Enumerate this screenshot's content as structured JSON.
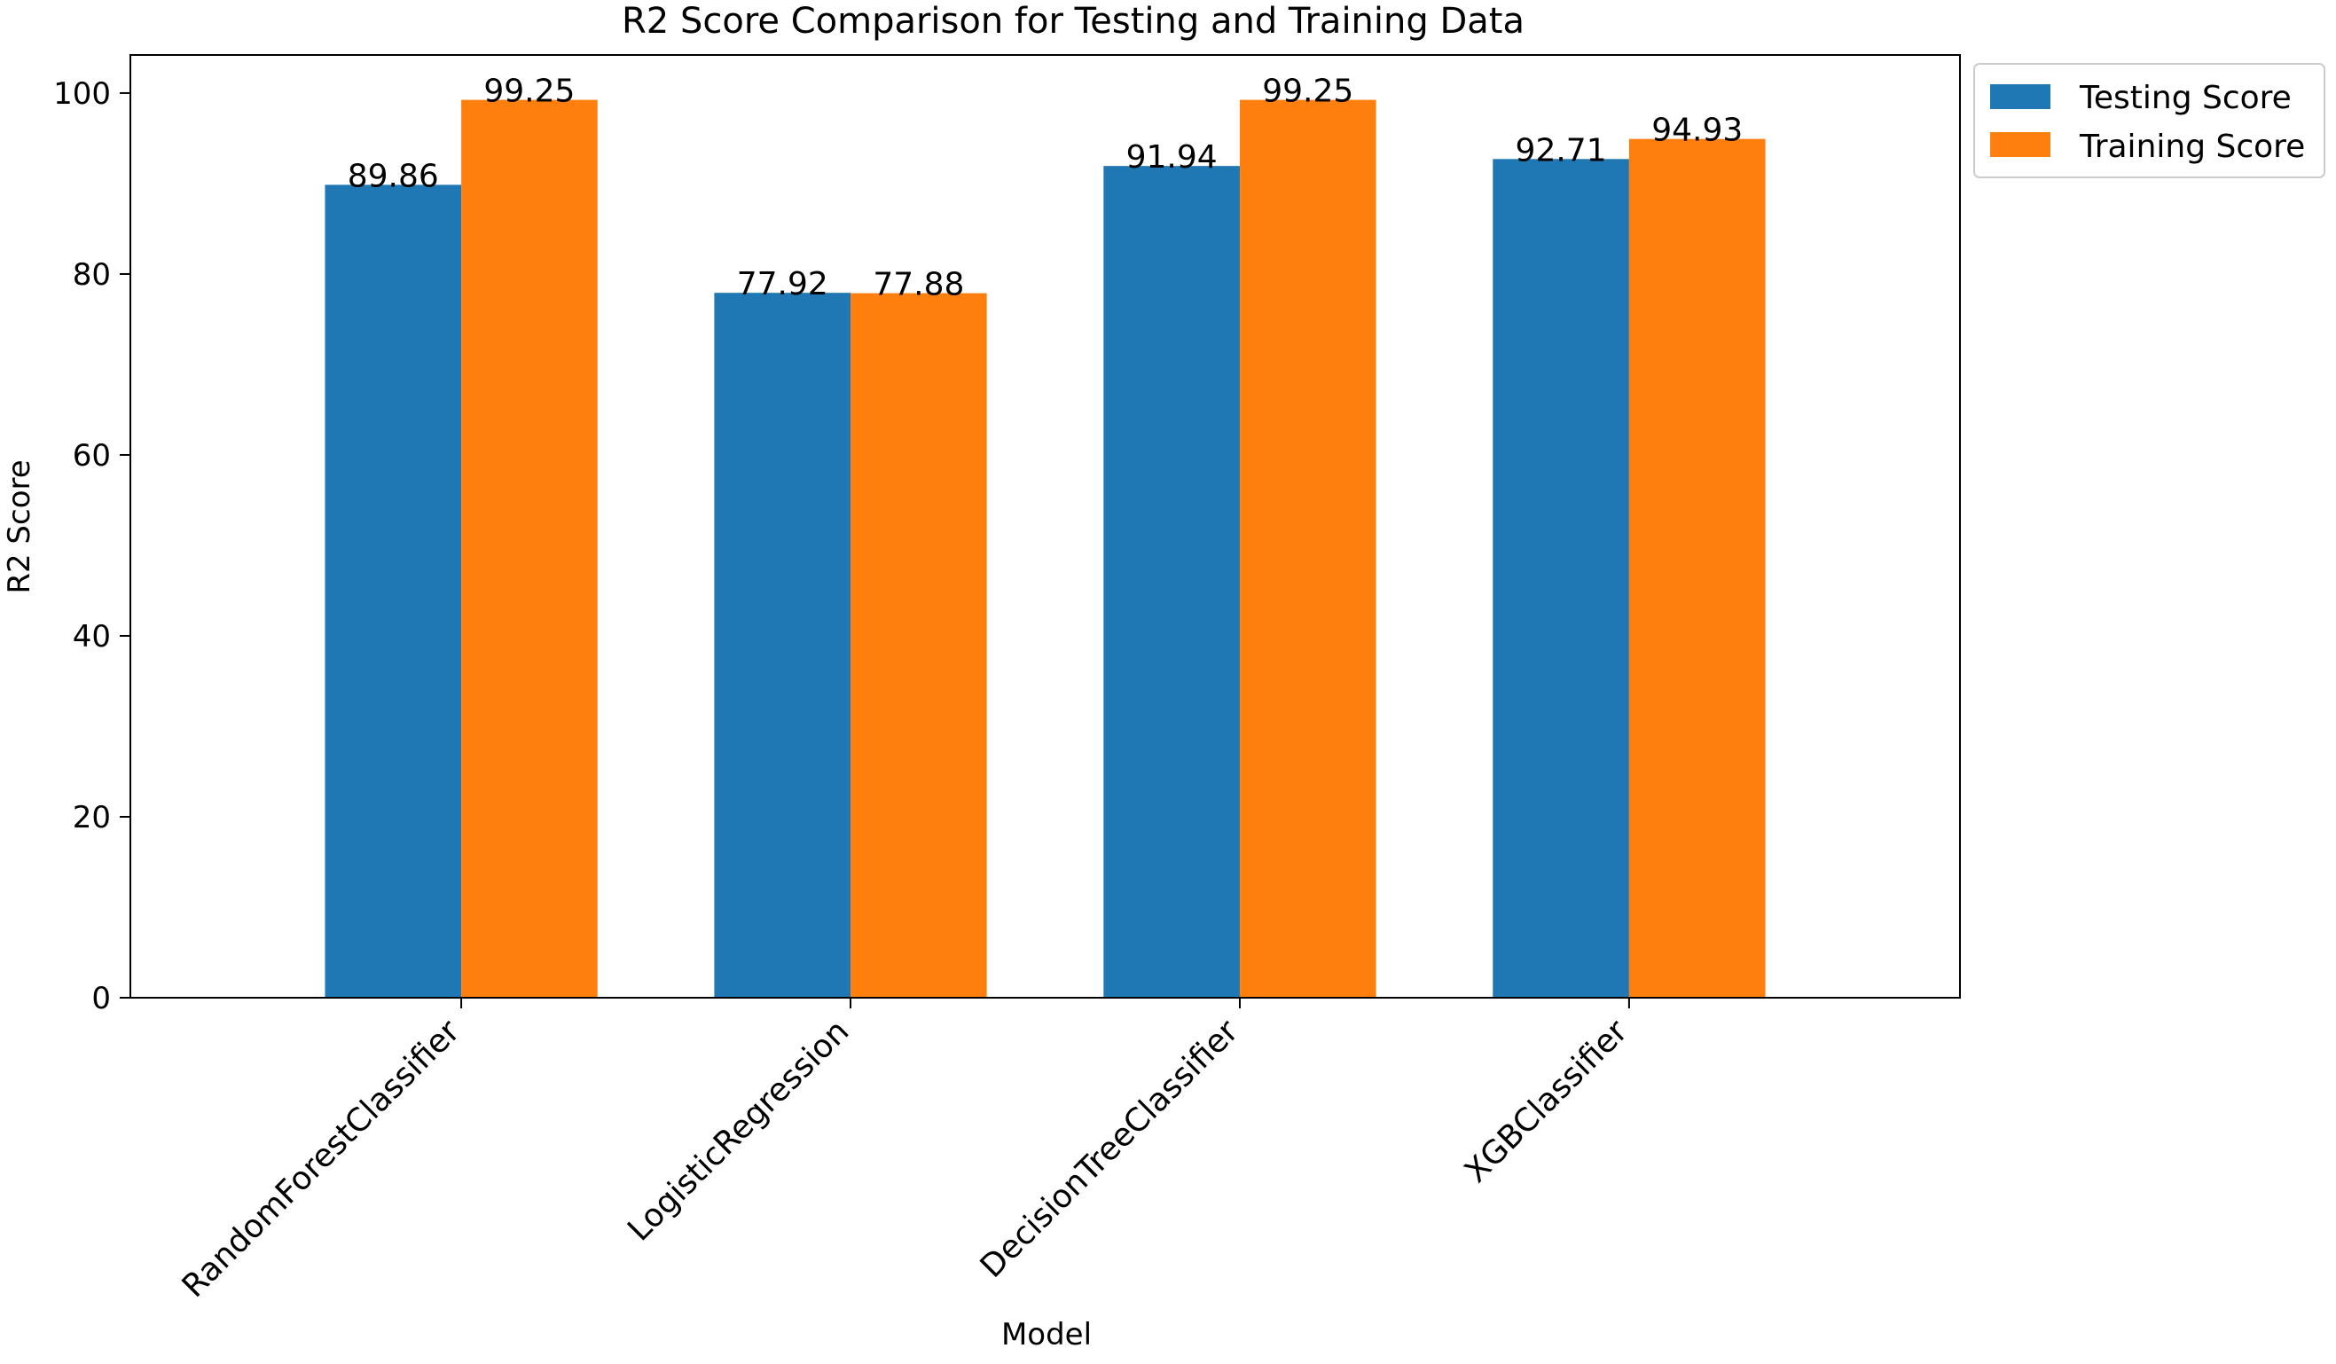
{
  "chart_data": {
    "type": "bar",
    "title": "R2 Score Comparison for Testing and Training Data",
    "xlabel": "Model",
    "ylabel": "R2 Score",
    "categories": [
      "RandomForestClassifier",
      "LogisticRegression",
      "DecisionTreeClassifier",
      "XGBClassifier"
    ],
    "series": [
      {
        "name": "Testing Score",
        "color": "#1f77b4",
        "values": [
          89.86,
          77.92,
          91.94,
          92.71
        ]
      },
      {
        "name": "Training Score",
        "color": "#ff7f0e",
        "values": [
          99.25,
          77.88,
          99.25,
          94.93
        ]
      }
    ],
    "ylim": [
      0,
      104.21
    ],
    "yticks": [
      0,
      20,
      40,
      60,
      80,
      100
    ],
    "grid": false,
    "legend_position": "outside-top-right",
    "data_labels": true,
    "xtick_rotation": -45
  }
}
